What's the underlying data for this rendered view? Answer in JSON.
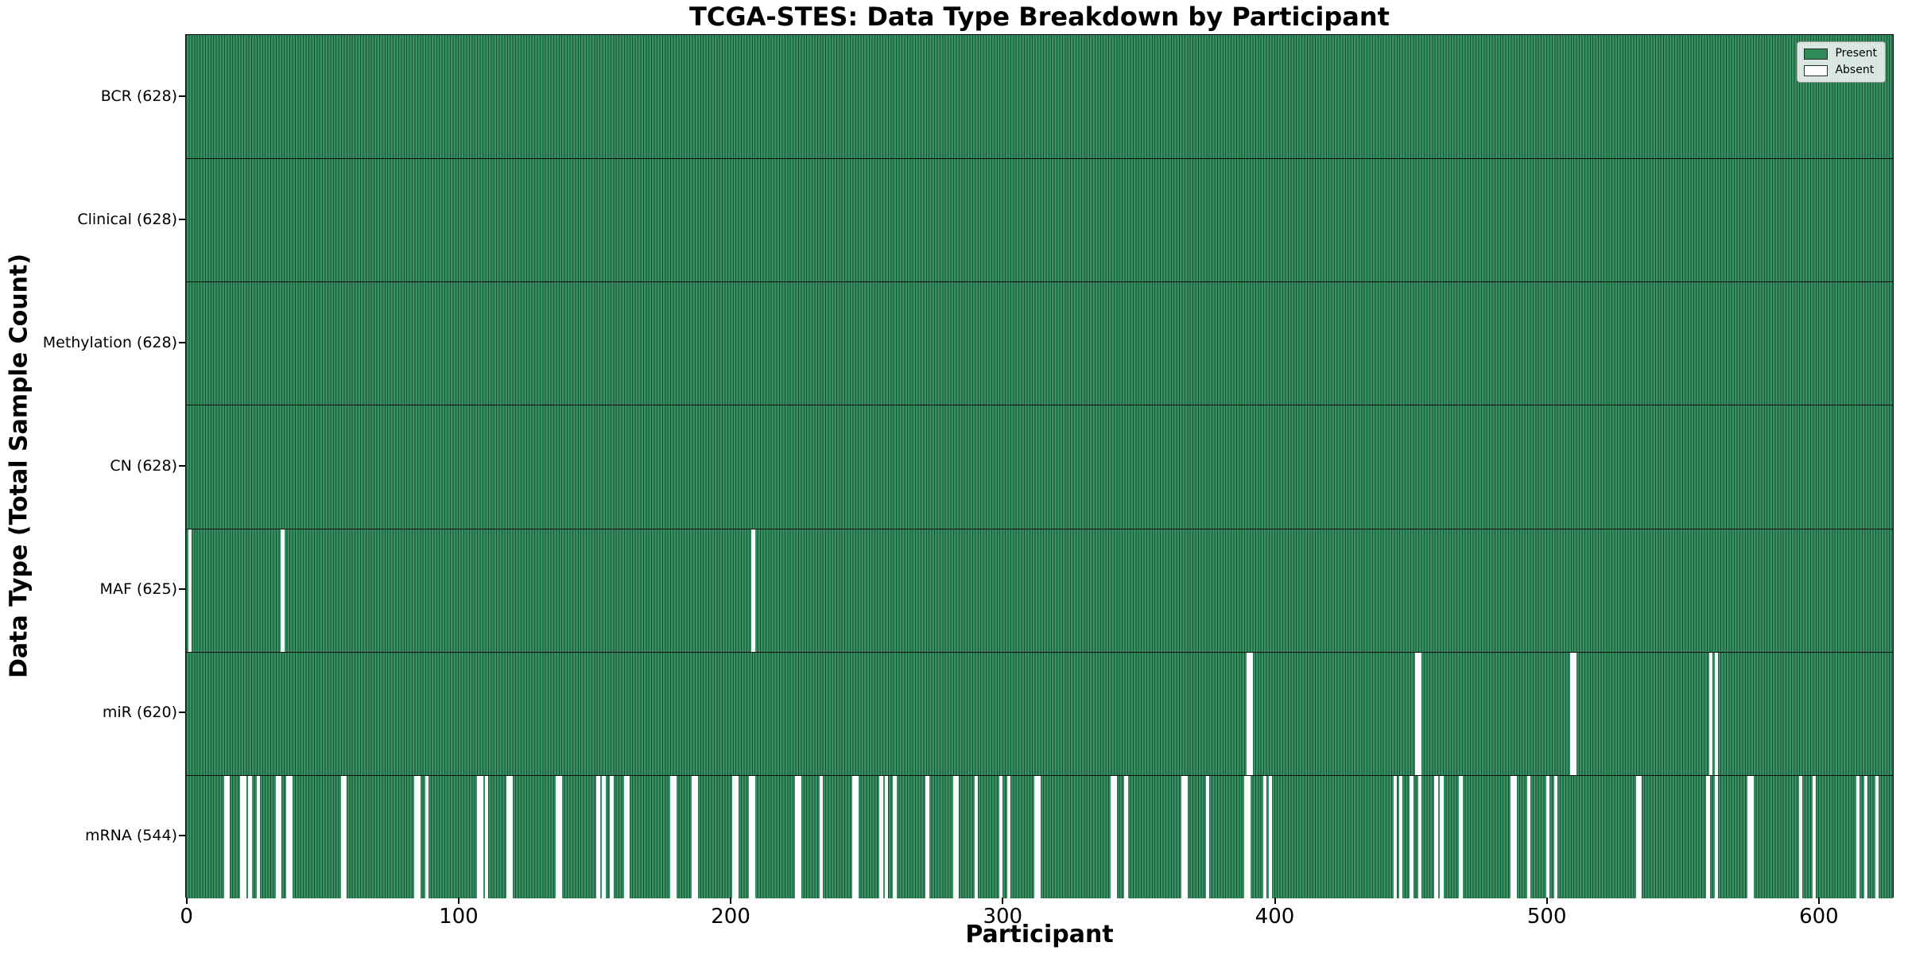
{
  "chart_data": {
    "type": "heatmap",
    "title": "TCGA-STES: Data Type Breakdown by Participant",
    "xlabel": "Participant",
    "ylabel": "Data Type (Total Sample Count)",
    "x_ticks": [
      0,
      100,
      200,
      300,
      400,
      500,
      600
    ],
    "x_range": [
      0,
      628
    ],
    "n_participants": 628,
    "grid": false,
    "present_color": "#2e8b57",
    "absent_color": "#ffffff",
    "legend": {
      "position": "upper right",
      "items": [
        {
          "label": "Present",
          "color": "#2e8b57"
        },
        {
          "label": "Absent",
          "color": "#ffffff"
        }
      ]
    },
    "rows": [
      {
        "label": "BCR (628)",
        "data_type": "BCR",
        "present_count": 628,
        "absent_participants": []
      },
      {
        "label": "Clinical (628)",
        "data_type": "Clinical",
        "present_count": 628,
        "absent_participants": []
      },
      {
        "label": "Methylation (628)",
        "data_type": "Methylation",
        "present_count": 628,
        "absent_participants": []
      },
      {
        "label": "CN (628)",
        "data_type": "CN",
        "present_count": 628,
        "absent_participants": []
      },
      {
        "label": "MAF (625)",
        "data_type": "MAF",
        "present_count": 625,
        "absent_participants": [
          1,
          35,
          208
        ]
      },
      {
        "label": "miR (620)",
        "data_type": "miR",
        "present_count": 620,
        "absent_participants": [
          390,
          391,
          452,
          453,
          509,
          510,
          560,
          562
        ]
      },
      {
        "label": "mRNA (544)",
        "data_type": "mRNA",
        "present_count": 544,
        "absent_participants": [
          14,
          15,
          20,
          21,
          23,
          26,
          33,
          34,
          37,
          38,
          57,
          58,
          84,
          85,
          88,
          107,
          108,
          110,
          118,
          119,
          136,
          137,
          151,
          153,
          156,
          161,
          162,
          178,
          179,
          186,
          187,
          201,
          202,
          207,
          208,
          224,
          225,
          233,
          245,
          246,
          255,
          257,
          260,
          272,
          282,
          283,
          290,
          299,
          302,
          312,
          313,
          340,
          341,
          345,
          366,
          367,
          375,
          389,
          390,
          396,
          398,
          444,
          446,
          450,
          453,
          459,
          461,
          468,
          487,
          488,
          493,
          500,
          503,
          533,
          534,
          559,
          562,
          574,
          575,
          593,
          598,
          614,
          617,
          621
        ]
      }
    ]
  }
}
